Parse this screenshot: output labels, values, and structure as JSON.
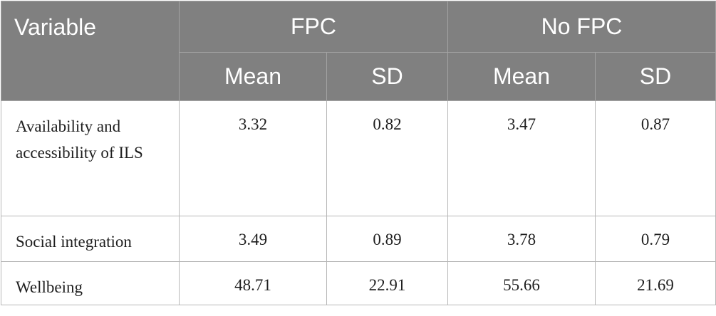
{
  "table": {
    "header": {
      "variable": "Variable",
      "groups": [
        "FPC",
        "No FPC"
      ],
      "subheaders": [
        "Mean",
        "SD",
        "Mean",
        "SD"
      ]
    },
    "rows": [
      {
        "variable": "Availability and accessibility of ILS",
        "values": [
          "3.32",
          "0.82",
          "3.47",
          "0.87"
        ]
      },
      {
        "variable": "Social integration",
        "values": [
          "3.49",
          "0.89",
          "3.78",
          "0.79"
        ]
      },
      {
        "variable": "Wellbeing",
        "values": [
          "48.71",
          "22.91",
          "55.66",
          "21.69"
        ]
      }
    ]
  }
}
